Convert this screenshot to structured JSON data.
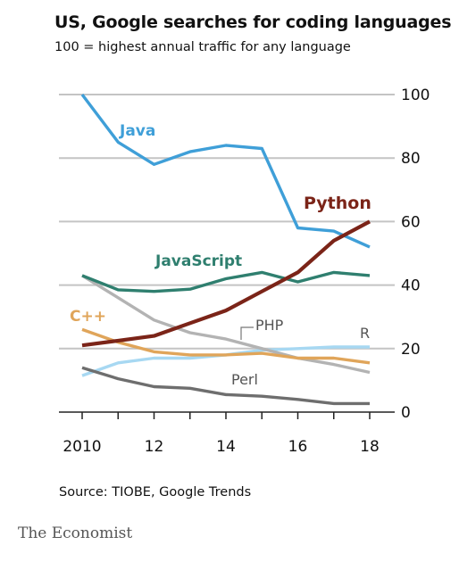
{
  "header": {
    "title": "US, Google searches for coding languages",
    "subtitle": "100 = highest annual traffic for any language"
  },
  "footer": {
    "source": "Source: TIOBE, Google Trends",
    "brand": "The Economist"
  },
  "chart_data": {
    "type": "line",
    "title": "US, Google searches for coding languages",
    "subtitle": "100 = highest annual traffic for any language",
    "x": [
      2010,
      2011,
      2012,
      2013,
      2014,
      2015,
      2016,
      2017,
      2018
    ],
    "x_tick_values": [
      2010,
      2012,
      2014,
      2016,
      2018
    ],
    "x_tick_labels": [
      "2010",
      "12",
      "14",
      "16",
      "18"
    ],
    "ylim": [
      0,
      100
    ],
    "y_ticks": [
      0,
      20,
      40,
      60,
      80,
      100
    ],
    "y_axis_side": "right",
    "grid": true,
    "series": [
      {
        "name": "Java",
        "color": "#3f9fd8",
        "label_color": "#3f9fd8",
        "values": [
          100,
          85,
          78,
          82,
          84,
          83,
          58,
          57,
          52
        ]
      },
      {
        "name": "Python",
        "color": "#7b2418",
        "label_color": "#7b2418",
        "values": [
          21,
          22.5,
          24,
          28,
          32,
          38,
          44,
          54,
          60
        ]
      },
      {
        "name": "JavaScript",
        "color": "#2f7f6f",
        "label_color": "#2f7f6f",
        "values": [
          43,
          38.5,
          38,
          38.7,
          42,
          44,
          41,
          44,
          43
        ]
      },
      {
        "name": "C++",
        "color": "#e0a55a",
        "label_color": "#e0a55a",
        "values": [
          26,
          22,
          19,
          18,
          18,
          18.5,
          17,
          17,
          15.5
        ]
      },
      {
        "name": "PHP",
        "color": "#b3b3b3",
        "label_color": "#555555",
        "values": [
          43,
          36,
          29,
          25,
          23,
          20,
          17,
          15,
          12.5
        ]
      },
      {
        "name": "R",
        "color": "#a7d8f2",
        "label_color": "#555555",
        "values": [
          11.5,
          15.5,
          17,
          17,
          18,
          19.5,
          20,
          20.5,
          20.5
        ]
      },
      {
        "name": "Perl",
        "color": "#6e6e6e",
        "label_color": "#555555",
        "values": [
          14,
          10.5,
          8,
          7.5,
          5.5,
          5,
          4,
          2.7,
          2.7
        ]
      }
    ]
  }
}
